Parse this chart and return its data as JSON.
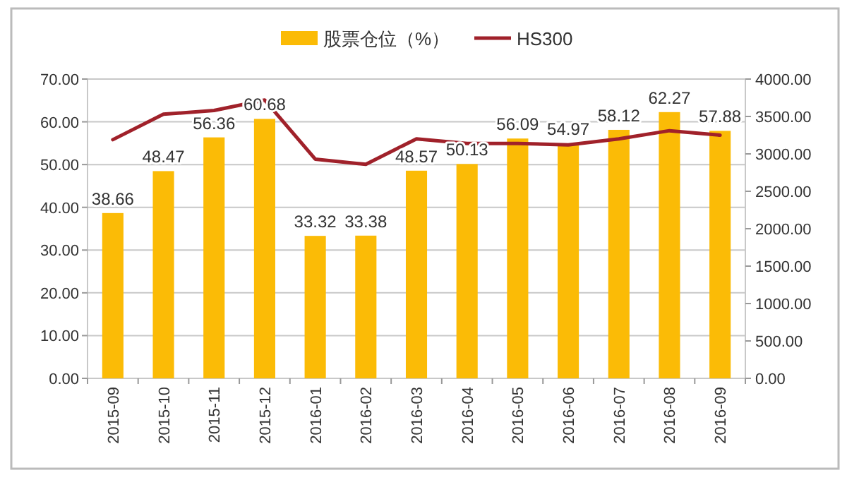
{
  "chart_data": {
    "type": "bar",
    "categories": [
      "2015-09",
      "2015-10",
      "2015-11",
      "2015-12",
      "2016-01",
      "2016-02",
      "2016-03",
      "2016-04",
      "2016-05",
      "2016-06",
      "2016-07",
      "2016-08",
      "2016-09"
    ],
    "series": [
      {
        "name": "股票仓位（%）",
        "color": "#fbbb06",
        "values": [
          38.66,
          48.47,
          56.36,
          60.68,
          33.32,
          33.38,
          48.57,
          50.13,
          56.09,
          54.97,
          58.12,
          62.27,
          57.88
        ],
        "value_labels": [
          "38.66",
          "48.47",
          "56.36",
          "60.68",
          "33.32",
          "33.38",
          "48.57",
          "50.13",
          "56.09",
          "54.97",
          "58.12",
          "62.27",
          "57.88"
        ]
      },
      {
        "name": "HS300",
        "type": "line",
        "axis": "y2",
        "color": "#a0212a",
        "values": [
          3190,
          3530,
          3580,
          3720,
          2930,
          2860,
          3200,
          3140,
          3140,
          3120,
          3200,
          3310,
          3250
        ]
      }
    ],
    "ylim": [
      0,
      70
    ],
    "yticks": [
      {
        "value": 0,
        "label": "0.00"
      },
      {
        "value": 10,
        "label": "10.00"
      },
      {
        "value": 20,
        "label": "20.00"
      },
      {
        "value": 30,
        "label": "30.00"
      },
      {
        "value": 40,
        "label": "40.00"
      },
      {
        "value": 50,
        "label": "50.00"
      },
      {
        "value": 60,
        "label": "60.00"
      },
      {
        "value": 70,
        "label": "70.00"
      }
    ],
    "y2lim": [
      0,
      4000
    ],
    "y2ticks": [
      {
        "value": 0,
        "label": "0.00"
      },
      {
        "value": 500,
        "label": "500.00"
      },
      {
        "value": 1000,
        "label": "1000.00"
      },
      {
        "value": 1500,
        "label": "1500.00"
      },
      {
        "value": 2000,
        "label": "2000.00"
      },
      {
        "value": 2500,
        "label": "2500.00"
      },
      {
        "value": 3000,
        "label": "3000.00"
      },
      {
        "value": 3500,
        "label": "3500.00"
      },
      {
        "value": 4000,
        "label": "4000.00"
      }
    ],
    "grid": "y",
    "legend": "top"
  }
}
